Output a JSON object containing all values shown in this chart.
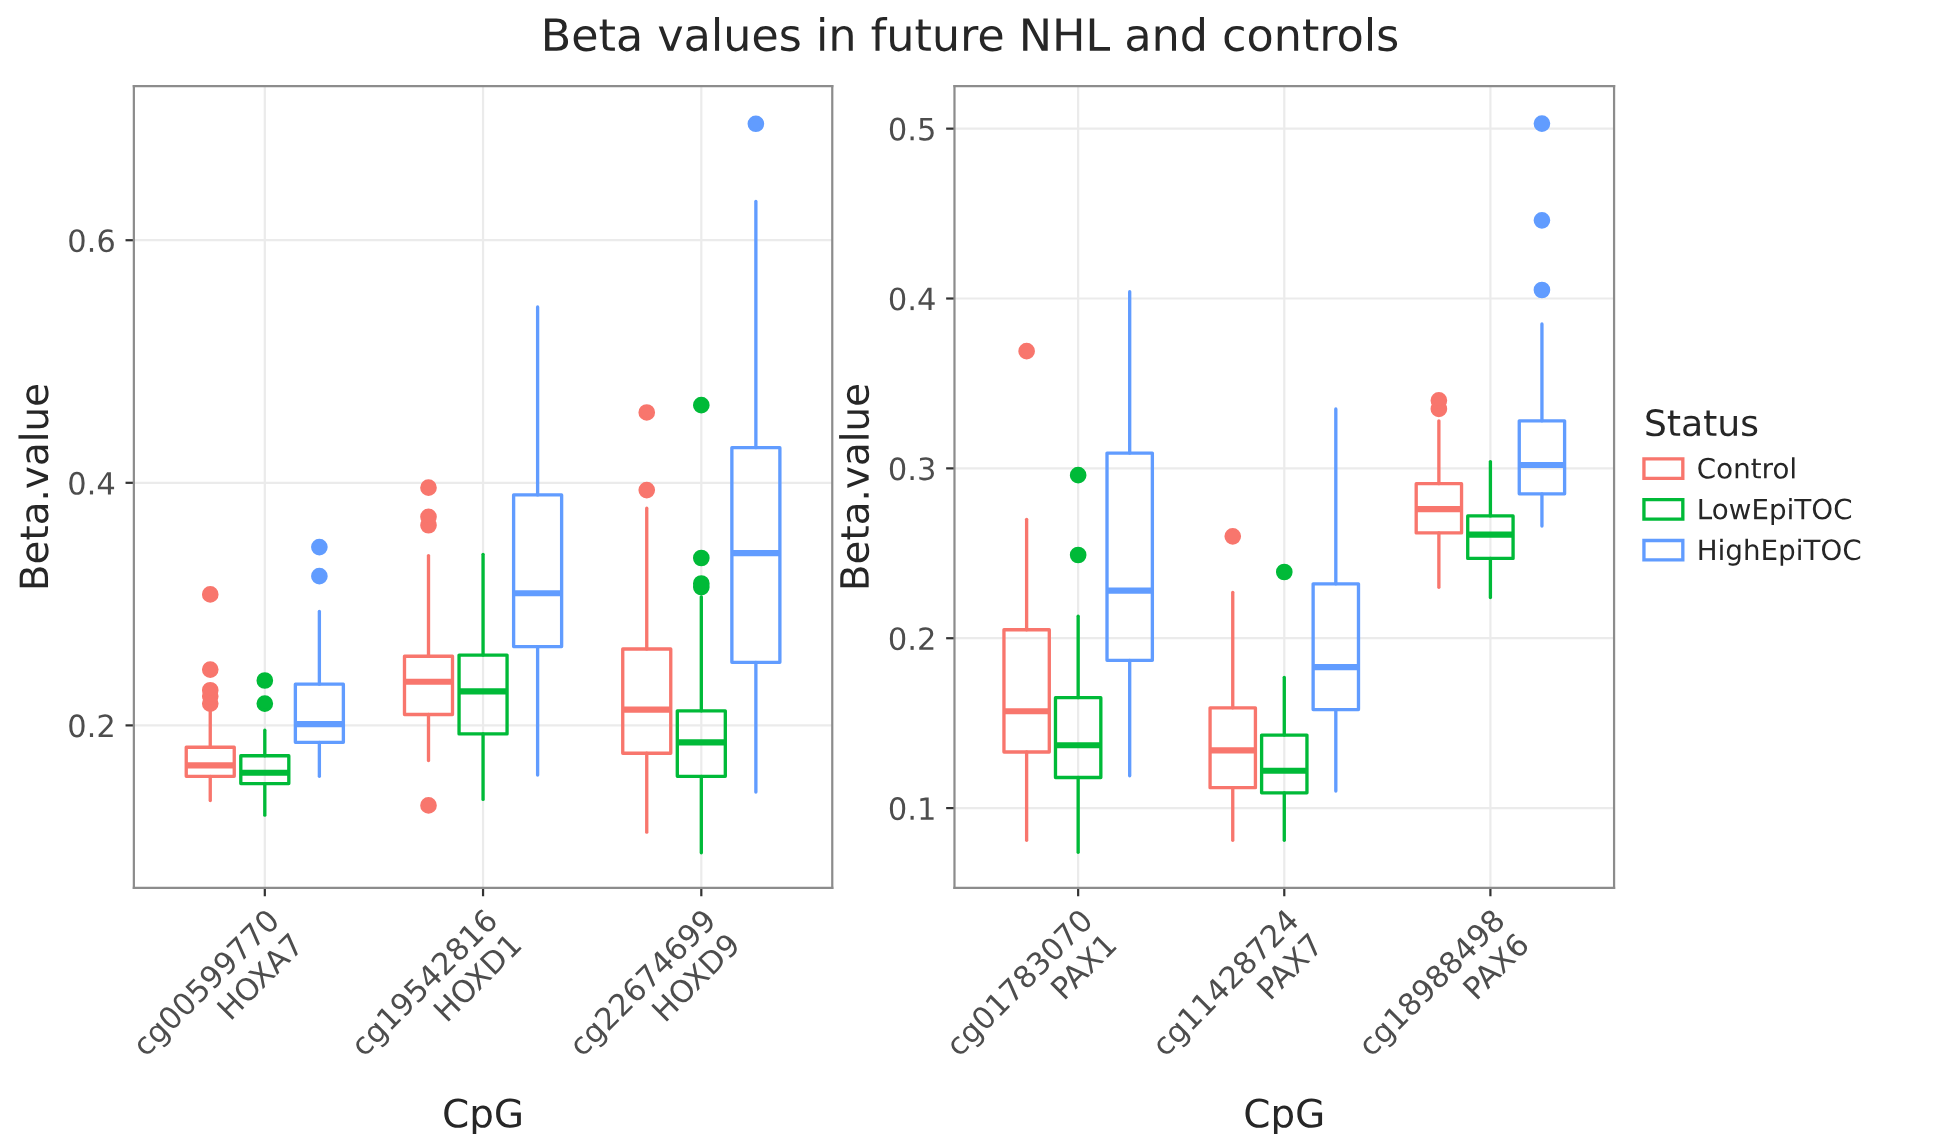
{
  "chart_data": [
    {
      "type": "box",
      "title": "Beta values in future NHL and controls",
      "xlabel": "CpG",
      "ylabel": "Beta.value",
      "categories": [
        "cg00599770\nHOXA7",
        "cg19542816\nHOXD1",
        "cg22674699\nHOXD9"
      ],
      "ylim": [
        0.066,
        0.727
      ],
      "yticks": [
        0.2,
        0.4,
        0.6
      ],
      "grid": true,
      "series": [
        {
          "color": "#f8766d",
          "boxes": [
            {
              "low": 0.138,
              "q1": 0.158,
              "median": 0.167,
              "q3": 0.182,
              "high": 0.214,
              "outliers": [
                0.218,
                0.224,
                0.229,
                0.246,
                0.308
              ]
            },
            {
              "low": 0.171,
              "q1": 0.209,
              "median": 0.236,
              "q3": 0.257,
              "high": 0.34,
              "outliers": [
                0.134,
                0.365,
                0.372,
                0.396
              ]
            },
            {
              "low": 0.112,
              "q1": 0.177,
              "median": 0.213,
              "q3": 0.263,
              "high": 0.379,
              "outliers": [
                0.394,
                0.458
              ]
            }
          ]
        },
        {
          "color": "#00ba38",
          "boxes": [
            {
              "low": 0.126,
              "q1": 0.152,
              "median": 0.161,
              "q3": 0.175,
              "high": 0.196,
              "outliers": [
                0.218,
                0.237
              ]
            },
            {
              "low": 0.139,
              "q1": 0.193,
              "median": 0.228,
              "q3": 0.258,
              "high": 0.341
            },
            {
              "low": 0.095,
              "q1": 0.158,
              "median": 0.186,
              "q3": 0.212,
              "high": 0.306,
              "outliers": [
                0.314,
                0.317,
                0.338,
                0.464
              ]
            }
          ]
        },
        {
          "color": "#619cff",
          "boxes": [
            {
              "low": 0.158,
              "q1": 0.186,
              "median": 0.201,
              "q3": 0.234,
              "high": 0.294,
              "outliers": [
                0.323,
                0.347
              ]
            },
            {
              "low": 0.159,
              "q1": 0.265,
              "median": 0.309,
              "q3": 0.39,
              "high": 0.545
            },
            {
              "low": 0.145,
              "q1": 0.252,
              "median": 0.342,
              "q3": 0.429,
              "high": 0.632,
              "outliers": [
                0.696
              ]
            }
          ]
        }
      ]
    },
    {
      "type": "box",
      "xlabel": "CpG",
      "ylabel": "Beta.value",
      "legend_title": "Status",
      "categories": [
        "cg01783070\nPAX1",
        "cg11428724\nPAX7",
        "cg18988498\nPAX6"
      ],
      "ylim": [
        0.053,
        0.525
      ],
      "yticks": [
        0.1,
        0.2,
        0.3,
        0.4,
        0.5
      ],
      "grid": true,
      "legend": "right",
      "series": [
        {
          "name": "Control",
          "color": "#f8766d",
          "boxes": [
            {
              "low": 0.081,
              "q1": 0.133,
              "median": 0.157,
              "q3": 0.205,
              "high": 0.27,
              "outliers": [
                0.369
              ]
            },
            {
              "low": 0.081,
              "q1": 0.112,
              "median": 0.134,
              "q3": 0.159,
              "high": 0.227,
              "outliers": [
                0.26
              ]
            },
            {
              "low": 0.23,
              "q1": 0.262,
              "median": 0.276,
              "q3": 0.291,
              "high": 0.328,
              "outliers": [
                0.335,
                0.34
              ]
            }
          ]
        },
        {
          "name": "LowEpiTOC",
          "color": "#00ba38",
          "boxes": [
            {
              "low": 0.074,
              "q1": 0.118,
              "median": 0.137,
              "q3": 0.165,
              "high": 0.213,
              "outliers": [
                0.249,
                0.296
              ]
            },
            {
              "low": 0.081,
              "q1": 0.109,
              "median": 0.122,
              "q3": 0.143,
              "high": 0.177,
              "outliers": [
                0.239
              ]
            },
            {
              "low": 0.224,
              "q1": 0.247,
              "median": 0.261,
              "q3": 0.272,
              "high": 0.304
            }
          ]
        },
        {
          "name": "HighEpiTOC",
          "color": "#619cff",
          "boxes": [
            {
              "low": 0.119,
              "q1": 0.187,
              "median": 0.228,
              "q3": 0.309,
              "high": 0.404
            },
            {
              "low": 0.11,
              "q1": 0.158,
              "median": 0.183,
              "q3": 0.232,
              "high": 0.335
            },
            {
              "low": 0.266,
              "q1": 0.285,
              "median": 0.302,
              "q3": 0.328,
              "high": 0.385,
              "outliers": [
                0.405,
                0.446,
                0.503
              ]
            }
          ]
        }
      ]
    }
  ]
}
